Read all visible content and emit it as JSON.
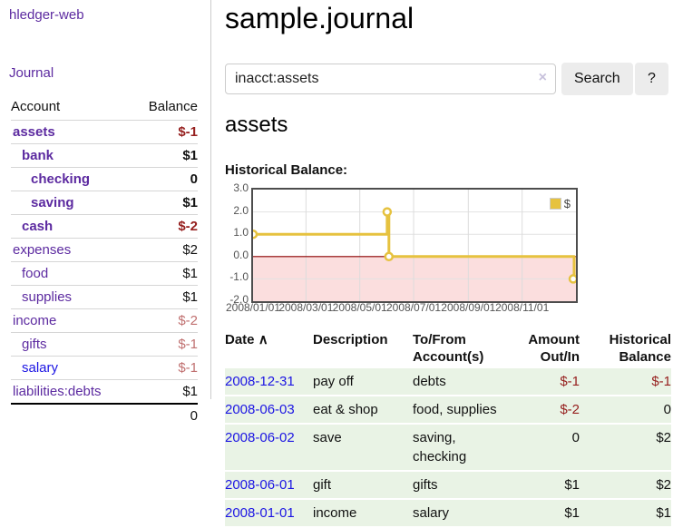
{
  "colors": {
    "purple_link": "#5c2aa0",
    "blue_link": "#1c15e3",
    "negative_strong": "#96201f",
    "negative_soft": "#c07070",
    "row_green": "#e9f3e5",
    "series_gold": "#e6c23f",
    "negative_region_pink": "#fbdede",
    "zero_line_red": "#8b0000"
  },
  "sidebar": {
    "brand": "hledger-web",
    "nav": {
      "journal": "Journal"
    },
    "header": {
      "account": "Account",
      "balance": "Balance"
    },
    "accounts": [
      {
        "name": "assets",
        "indent": 0,
        "bold": true,
        "balance": "$-1",
        "negative": "strong"
      },
      {
        "name": "bank",
        "indent": 1,
        "bold": true,
        "balance": "$1",
        "negative": "none"
      },
      {
        "name": "checking",
        "indent": 2,
        "bold": true,
        "balance": "0",
        "negative": "none"
      },
      {
        "name": "saving",
        "indent": 2,
        "bold": true,
        "balance": "$1",
        "negative": "none"
      },
      {
        "name": "cash",
        "indent": 1,
        "bold": true,
        "balance": "$-2",
        "negative": "strong"
      },
      {
        "name": "expenses",
        "indent": 0,
        "bold": false,
        "balance": "$2",
        "negative": "none"
      },
      {
        "name": "food",
        "indent": 1,
        "bold": false,
        "balance": "$1",
        "negative": "none"
      },
      {
        "name": "supplies",
        "indent": 1,
        "bold": false,
        "balance": "$1",
        "negative": "none"
      },
      {
        "name": "income",
        "indent": 0,
        "bold": false,
        "balance": "$-2",
        "negative": "soft"
      },
      {
        "name": "gifts",
        "indent": 1,
        "bold": false,
        "balance": "$-1",
        "negative": "soft"
      },
      {
        "name": "salary",
        "indent": 1,
        "bold": false,
        "balance": "$-1",
        "negative": "soft",
        "link_color": "blue"
      },
      {
        "name": "liabilities:debts",
        "indent": 0,
        "bold": false,
        "balance": "$1",
        "negative": "none"
      }
    ],
    "total": "0"
  },
  "header": {
    "title": "sample.journal"
  },
  "search": {
    "value": "inacct:assets",
    "clear_icon": "×",
    "button_label": "Search",
    "help_label": "?"
  },
  "register": {
    "heading": "assets",
    "chart_title": "Historical Balance:"
  },
  "chart_data": {
    "type": "line",
    "style": "step-after",
    "title": "Historical Balance:",
    "x_range_days": [
      0,
      366
    ],
    "ylim": [
      -2,
      3
    ],
    "grid": true,
    "legend": {
      "label": "$",
      "position": "top-right"
    },
    "y_ticks": [
      {
        "label": "3.0",
        "value": 3
      },
      {
        "label": "2.0",
        "value": 2
      },
      {
        "label": "1.0",
        "value": 1
      },
      {
        "label": "0.0",
        "value": 0
      },
      {
        "label": "-1.0",
        "value": -1
      },
      {
        "label": "-2.0",
        "value": -2
      }
    ],
    "x_ticks": [
      {
        "label": "2008/01/01",
        "day": 0
      },
      {
        "label": "2008/03/01",
        "day": 60
      },
      {
        "label": "2008/05/01",
        "day": 121
      },
      {
        "label": "2008/07/01",
        "day": 182
      },
      {
        "label": "2008/09/01",
        "day": 244
      },
      {
        "label": "2008/11/01",
        "day": 305
      }
    ],
    "series": [
      {
        "name": "$",
        "color": "#e6c23f",
        "points": [
          {
            "date": "2008-01-01",
            "day": 0,
            "value": 1
          },
          {
            "date": "2008-06-01",
            "day": 152,
            "value": 2
          },
          {
            "date": "2008-06-03",
            "day": 154,
            "value": 0
          },
          {
            "date": "2008-12-31",
            "day": 365,
            "value": -1
          }
        ]
      }
    ]
  },
  "table": {
    "sort_icon": "∧",
    "headers": [
      "Date",
      "Description",
      "To/From\nAccount(s)",
      "Amount\nOut/In",
      "Historical\nBalance"
    ],
    "rows": [
      {
        "date": "2008-12-31",
        "description": "pay off",
        "accounts_lines": [
          "debts"
        ],
        "amount": "$-1",
        "amount_negative": true,
        "balance": "$-1",
        "balance_negative": true
      },
      {
        "date": "2008-06-03",
        "description": "eat & shop",
        "accounts_lines": [
          "food, supplies"
        ],
        "amount": "$-2",
        "amount_negative": true,
        "balance": "0",
        "balance_negative": false
      },
      {
        "date": "2008-06-02",
        "description": "save",
        "accounts_lines": [
          "saving,",
          "checking"
        ],
        "amount": "0",
        "amount_negative": false,
        "balance": "$2",
        "balance_negative": false
      },
      {
        "date": "2008-06-01",
        "description": "gift",
        "accounts_lines": [
          "gifts"
        ],
        "amount": "$1",
        "amount_negative": false,
        "balance": "$2",
        "balance_negative": false
      },
      {
        "date": "2008-01-01",
        "description": "income",
        "accounts_lines": [
          "salary"
        ],
        "amount": "$1",
        "amount_negative": false,
        "balance": "$1",
        "balance_negative": false
      }
    ]
  }
}
